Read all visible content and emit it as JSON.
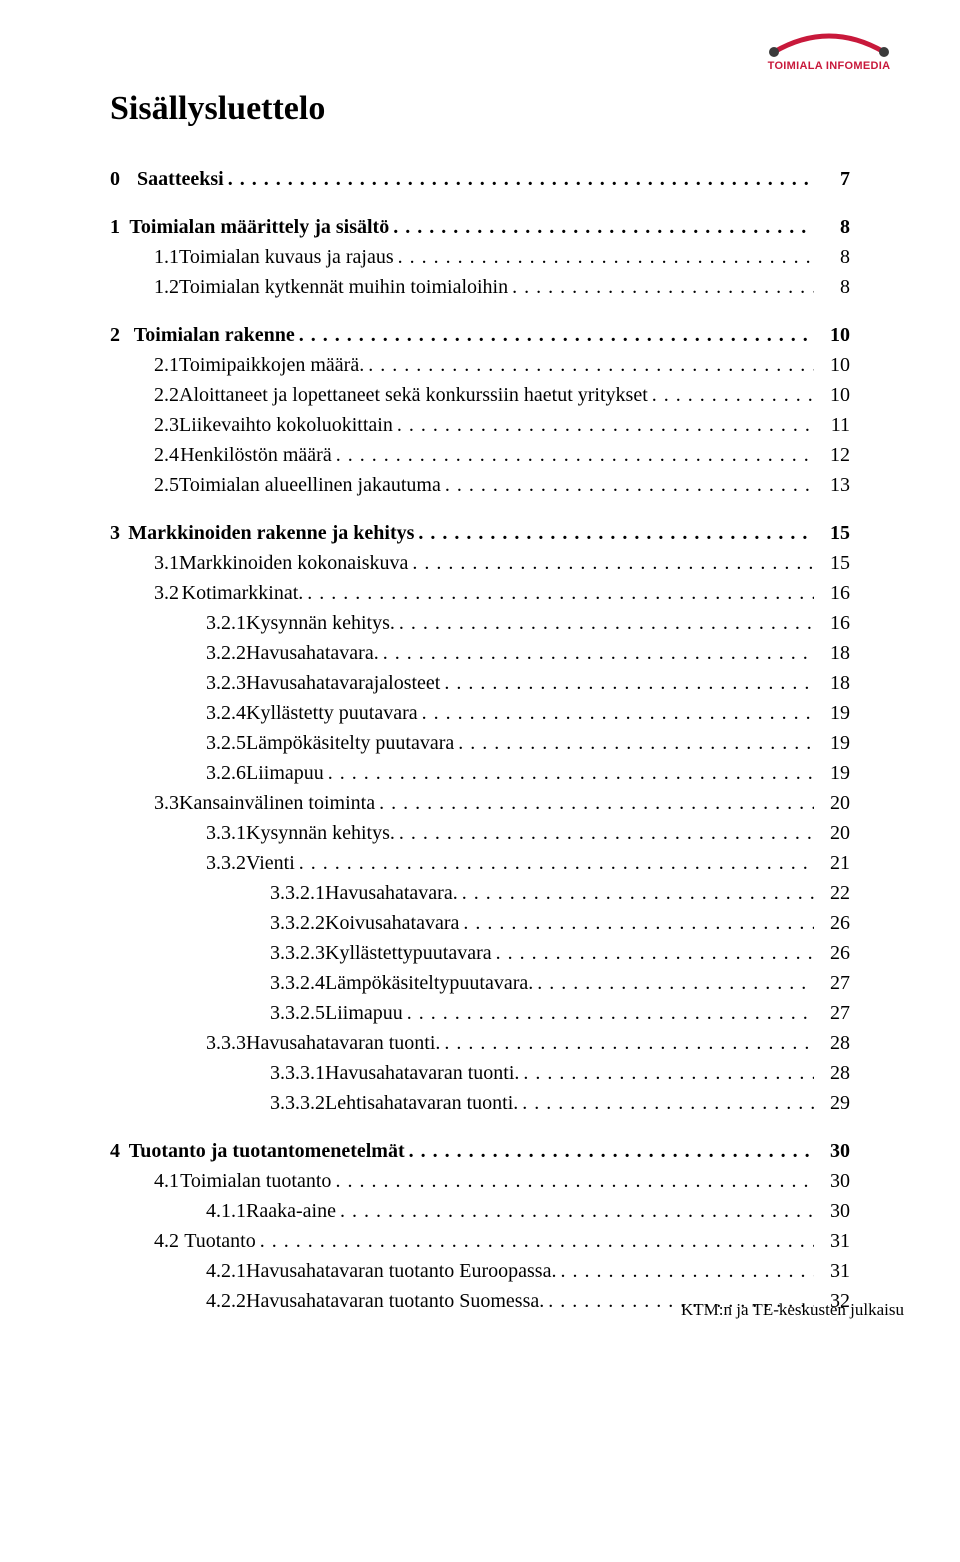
{
  "logo": {
    "brand_text": "TOIMIALA INFOMEDIA",
    "arc_color": "#c8193b",
    "dot_color": "#3b3b3b",
    "text_color": "#c8193b"
  },
  "title": "Sisällysluettelo",
  "footer": "KTM:n ja TE-keskusten julkaisu",
  "toc": [
    {
      "level": 0,
      "num": "0",
      "label": "Saatteeksi",
      "page": "7",
      "space_before": false
    },
    {
      "level": 0,
      "num": "1",
      "label": "Toimialan määrittely ja sisältö",
      "page": "8",
      "space_before": true
    },
    {
      "level": 1,
      "num": "1.1",
      "label": "Toimialan kuvaus ja rajaus",
      "page": "8",
      "space_before": false
    },
    {
      "level": 1,
      "num": "1.2",
      "label": "Toimialan kytkennät muihin toimialoihin",
      "page": "8",
      "space_before": false
    },
    {
      "level": 0,
      "num": "2",
      "label": "Toimialan rakenne",
      "page": "10",
      "space_before": true
    },
    {
      "level": 1,
      "num": "2.1",
      "label": "Toimipaikkojen määrä.",
      "page": "10",
      "space_before": false
    },
    {
      "level": 1,
      "num": "2.2",
      "label": "Aloittaneet ja lopettaneet sekä konkurssiin haetut yritykset",
      "page": "10",
      "space_before": false
    },
    {
      "level": 1,
      "num": "2.3",
      "label": "Liikevaihto kokoluokittain",
      "page": "11",
      "space_before": false
    },
    {
      "level": 1,
      "num": "2.4",
      "label": "Henkilöstön määrä",
      "page": "12",
      "space_before": false
    },
    {
      "level": 1,
      "num": "2.5",
      "label": "Toimialan alueellinen jakautuma",
      "page": "13",
      "space_before": false
    },
    {
      "level": 0,
      "num": "3",
      "label": "Markkinoiden rakenne ja kehitys",
      "page": "15",
      "space_before": true
    },
    {
      "level": 1,
      "num": "3.1",
      "label": "Markkinoiden kokonaiskuva",
      "page": "15",
      "space_before": false
    },
    {
      "level": 1,
      "num": "3.2",
      "label": "Kotimarkkinat.",
      "page": "16",
      "space_before": false
    },
    {
      "level": 2,
      "num": "3.2.1",
      "label": "Kysynnän kehitys.",
      "page": "16",
      "space_before": false
    },
    {
      "level": 2,
      "num": "3.2.2",
      "label": "Havusahatavara.",
      "page": "18",
      "space_before": false
    },
    {
      "level": 2,
      "num": "3.2.3",
      "label": "Havusahatavarajalosteet",
      "page": "18",
      "space_before": false
    },
    {
      "level": 2,
      "num": "3.2.4",
      "label": "Kyllästetty puutavara",
      "page": "19",
      "space_before": false
    },
    {
      "level": 2,
      "num": "3.2.5",
      "label": "Lämpökäsitelty puutavara",
      "page": "19",
      "space_before": false
    },
    {
      "level": 2,
      "num": "3.2.6",
      "label": "Liimapuu",
      "page": "19",
      "space_before": false
    },
    {
      "level": 1,
      "num": "3.3",
      "label": "Kansainvälinen toiminta",
      "page": "20",
      "space_before": false
    },
    {
      "level": 2,
      "num": "3.3.1",
      "label": "Kysynnän kehitys.",
      "page": "20",
      "space_before": false
    },
    {
      "level": 2,
      "num": "3.3.2",
      "label": "Vienti",
      "page": "21",
      "space_before": false
    },
    {
      "level": 3,
      "num": "3.3.2.1",
      "label": "Havusahatavara.",
      "page": "22",
      "space_before": false
    },
    {
      "level": 3,
      "num": "3.3.2.2",
      "label": "Koivusahatavara",
      "page": "26",
      "space_before": false
    },
    {
      "level": 3,
      "num": "3.3.2.3",
      "label": "Kyllästettypuutavara",
      "page": "26",
      "space_before": false
    },
    {
      "level": 3,
      "num": "3.3.2.4",
      "label": "Lämpökäsiteltypuutavara.",
      "page": "27",
      "space_before": false
    },
    {
      "level": 3,
      "num": "3.3.2.5",
      "label": "Liimapuu",
      "page": "27",
      "space_before": false
    },
    {
      "level": 2,
      "num": "3.3.3",
      "label": "Havusahatavaran tuonti.",
      "page": "28",
      "space_before": false
    },
    {
      "level": 3,
      "num": "3.3.3.1",
      "label": "Havusahatavaran tuonti.",
      "page": "28",
      "space_before": false
    },
    {
      "level": 3,
      "num": "3.3.3.2",
      "label": "Lehtisahatavaran tuonti.",
      "page": "29",
      "space_before": false
    },
    {
      "level": 0,
      "num": "4",
      "label": "Tuotanto ja tuotantomenetelmät",
      "page": "30",
      "space_before": true
    },
    {
      "level": 1,
      "num": "4.1",
      "label": "Toimialan tuotanto",
      "page": "30",
      "space_before": false
    },
    {
      "level": 2,
      "num": "4.1.1",
      "label": "Raaka-aine",
      "page": "30",
      "space_before": false
    },
    {
      "level": 1,
      "num": "4.2",
      "label": "Tuotanto",
      "page": "31",
      "space_before": false
    },
    {
      "level": 2,
      "num": "4.2.1",
      "label": "Havusahatavaran tuotanto Euroopassa.",
      "page": "31",
      "space_before": false
    },
    {
      "level": 2,
      "num": "4.2.2",
      "label": "Havusahatavaran tuotanto Suomessa.",
      "page": "32",
      "space_before": false
    }
  ]
}
